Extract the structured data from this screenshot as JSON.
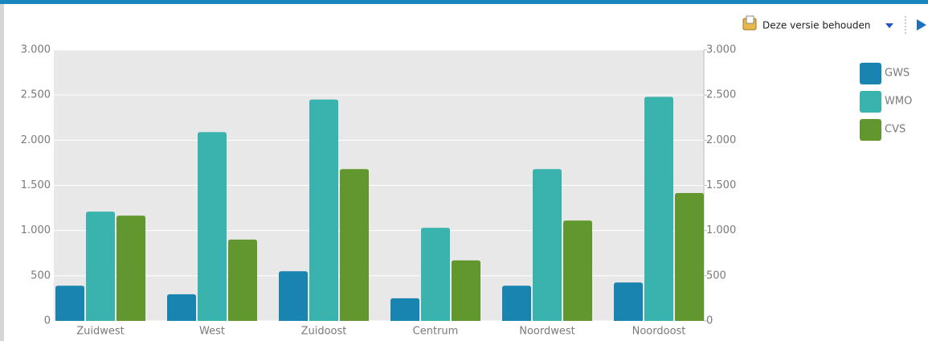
{
  "toolbar": {
    "action": "Deze versie behouden"
  },
  "chart_data": {
    "type": "bar",
    "categories": [
      "Zuidwest",
      "West",
      "Zuidoost",
      "Centrum",
      "Noordwest",
      "Noordoost"
    ],
    "series": [
      {
        "name": "GWS",
        "color": "#1a84b0",
        "values": [
          390,
          295,
          550,
          250,
          390,
          425
        ]
      },
      {
        "name": "WMO",
        "color": "#3ab2ad",
        "values": [
          1210,
          2090,
          2450,
          1030,
          1680,
          2480
        ]
      },
      {
        "name": "CVS",
        "color": "#62962e",
        "values": [
          1165,
          900,
          1680,
          670,
          1110,
          1415
        ]
      }
    ],
    "ylim": [
      0,
      3000
    ],
    "yticks": [
      0,
      500,
      {
        "value": 1000,
        "label": "1.000"
      },
      {
        "value": 1500,
        "label": "1.500"
      },
      {
        "value": 2000,
        "label": "2.000"
      },
      {
        "value": 2500,
        "label": "2.500"
      },
      {
        "value": 3000,
        "label": "3.000"
      }
    ],
    "y2lim": [
      0,
      3000
    ],
    "y2ticks": [
      0,
      500,
      {
        "value": 1000,
        "label": "1.000"
      },
      {
        "value": 1500,
        "label": "1.500"
      },
      {
        "value": 2000,
        "label": "2.000"
      },
      {
        "value": 2500,
        "label": "2.500"
      },
      {
        "value": 3000,
        "label": "3.000"
      }
    ],
    "grid": true,
    "legend": "right"
  }
}
